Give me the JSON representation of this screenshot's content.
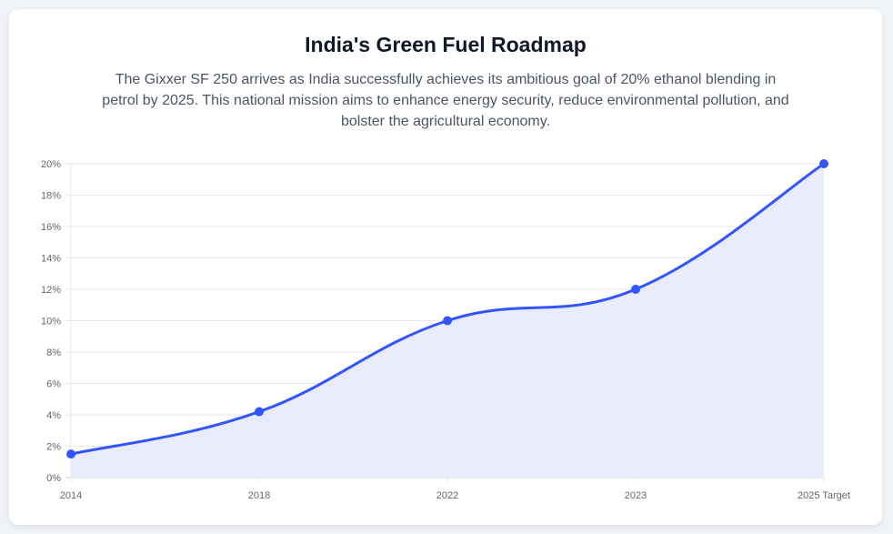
{
  "header": {
    "title": "India's Green Fuel Roadmap",
    "subtitle": "The Gixxer SF 250 arrives as India successfully achieves its ambitious goal of 20% ethanol blending in petrol by 2025. This national mission aims to enhance energy security, reduce environmental pollution, and bolster the agricultural economy."
  },
  "chart_data": {
    "type": "area",
    "categories": [
      "2014",
      "2018",
      "2022",
      "2023",
      "2025 Target"
    ],
    "values": [
      1.5,
      4.2,
      10,
      12,
      20
    ],
    "ylim": [
      0,
      20
    ],
    "yticks": [
      "0%",
      "2%",
      "4%",
      "6%",
      "8%",
      "10%",
      "12%",
      "14%",
      "16%",
      "18%",
      "20%"
    ],
    "grid": true,
    "colors": {
      "line": "#3355ff",
      "fill": "#e8ecfd",
      "grid": "#e5e7eb"
    }
  }
}
